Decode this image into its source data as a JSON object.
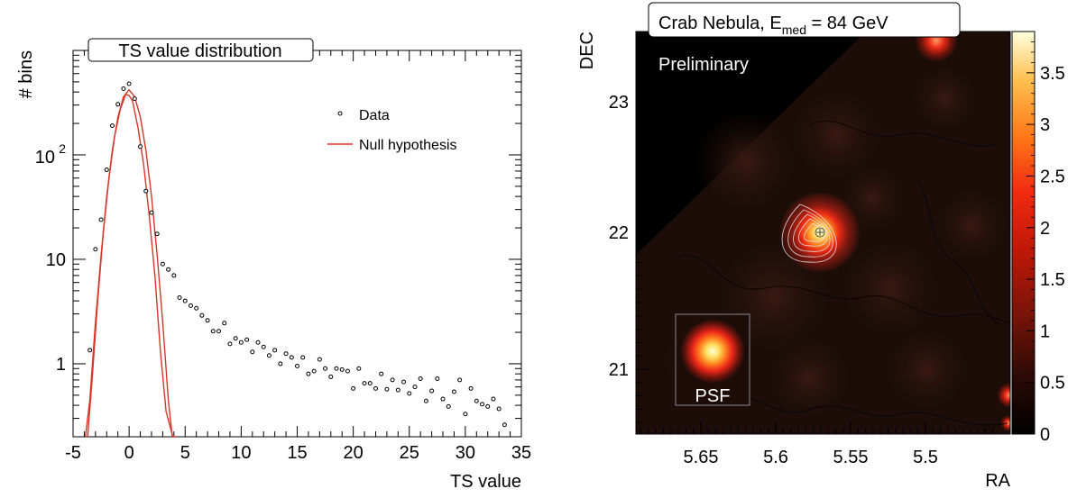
{
  "chart_data": [
    {
      "type": "scatter",
      "title": "TS value distribution",
      "xlabel": "TS value",
      "ylabel": "# bins",
      "xlim": [
        -5,
        35
      ],
      "ylim": [
        0.2,
        1000
      ],
      "yscale": "log",
      "x_ticks": [
        "-5",
        "0",
        "5",
        "10",
        "15",
        "20",
        "25",
        "30",
        "35"
      ],
      "y_ticks": [
        "1",
        "10",
        "10^2"
      ],
      "legend_placement": "top-right",
      "series": [
        {
          "name": "Data",
          "marker": "open-circle",
          "color": "#000000",
          "x": [
            -3.5,
            -3,
            -2.5,
            -2,
            -1.5,
            -1,
            -0.5,
            0,
            0.5,
            1,
            1.5,
            2,
            2.5,
            3,
            3.5,
            4,
            4.5,
            5,
            5.5,
            6,
            6.5,
            7,
            7.5,
            8,
            8.5,
            9,
            9.5,
            10,
            10.5,
            11,
            11.5,
            12,
            12.5,
            13,
            13.5,
            14,
            14.5,
            15,
            15.5,
            16,
            16.5,
            17,
            17.5,
            18,
            18.5,
            19,
            19.5,
            20,
            20.5,
            21,
            21.5,
            22,
            22.5,
            23,
            23.5,
            24,
            24.5,
            25,
            25.5,
            26,
            26.5,
            27,
            27.5,
            28,
            28.5,
            29,
            29.5,
            30,
            30.5,
            31,
            31.5,
            32,
            32.5,
            33,
            33.5
          ],
          "y": [
            1.35,
            12.5,
            24,
            72,
            190,
            305,
            430,
            480,
            345,
            120,
            45,
            28,
            17.5,
            9,
            8,
            7,
            4.3,
            4,
            3.6,
            3.4,
            2.9,
            2.6,
            2.05,
            2.05,
            2.45,
            1.55,
            1.75,
            1.6,
            1.7,
            1.3,
            1.6,
            1.45,
            1.2,
            1.35,
            1.0,
            1.25,
            1.15,
            0.95,
            1.15,
            0.8,
            0.85,
            1.1,
            0.9,
            0.75,
            0.9,
            0.88,
            0.85,
            0.58,
            0.9,
            0.65,
            0.65,
            0.58,
            0.8,
            0.57,
            0.7,
            0.56,
            0.67,
            0.52,
            0.6,
            0.72,
            0.44,
            0.55,
            0.72,
            0.46,
            0.39,
            0.54,
            0.7,
            0.33,
            0.58,
            0.44,
            0.41,
            0.39,
            0.46,
            0.37,
            0.26
          ]
        },
        {
          "name": "Null hypothesis",
          "marker": "line",
          "color": "#d9362a",
          "x": [
            -3.9,
            -3.5,
            -3,
            -2.5,
            -2,
            -1.5,
            -1,
            -0.5,
            0,
            0.5,
            1,
            1.5,
            2,
            2.5,
            3,
            3.5,
            3.85
          ],
          "y": [
            0.2,
            0.45,
            2.5,
            11,
            40,
            110,
            230,
            360,
            420,
            360,
            230,
            110,
            40,
            11,
            2.5,
            0.45,
            0.2
          ]
        },
        {
          "name": "",
          "marker": "line",
          "color": "#d9362a",
          "x": [
            -3.7,
            -3.3,
            -2.8,
            -2.3,
            -1.8,
            -1.3,
            -0.8,
            -0.3,
            0,
            0.3,
            0.8,
            1.3,
            1.8,
            2.3,
            2.8,
            3.3,
            3.9,
            4.2
          ],
          "y": [
            0.2,
            0.7,
            4,
            18,
            60,
            150,
            270,
            380,
            370,
            330,
            180,
            80,
            26,
            7,
            1.3,
            0.35,
            0.2,
            0.2
          ]
        }
      ]
    },
    {
      "type": "heatmap",
      "title": "Crab Nebula, E",
      "title_sub": "med",
      "title_rest": " = 84 GeV",
      "annotation": "Preliminary",
      "xlabel": "RA",
      "ylabel": "DEC",
      "x_ticks": [
        "5.65",
        "5.6",
        "5.55",
        "5.5"
      ],
      "y_ticks": [
        "21",
        "22",
        "23"
      ],
      "colorbar_ticks": [
        "0",
        "0.5",
        "1",
        "1.5",
        "2",
        "2.5",
        "3",
        "3.5"
      ],
      "colorbar_range": [
        0,
        3.9
      ],
      "source_position": {
        "ra": 5.575,
        "dec": 22.015
      },
      "psf_label": "PSF",
      "colors": {
        "background": "#1c0d09",
        "mid": "#7a1a10",
        "hot": "#ff2a18",
        "peak": "#ffffd8"
      }
    }
  ]
}
